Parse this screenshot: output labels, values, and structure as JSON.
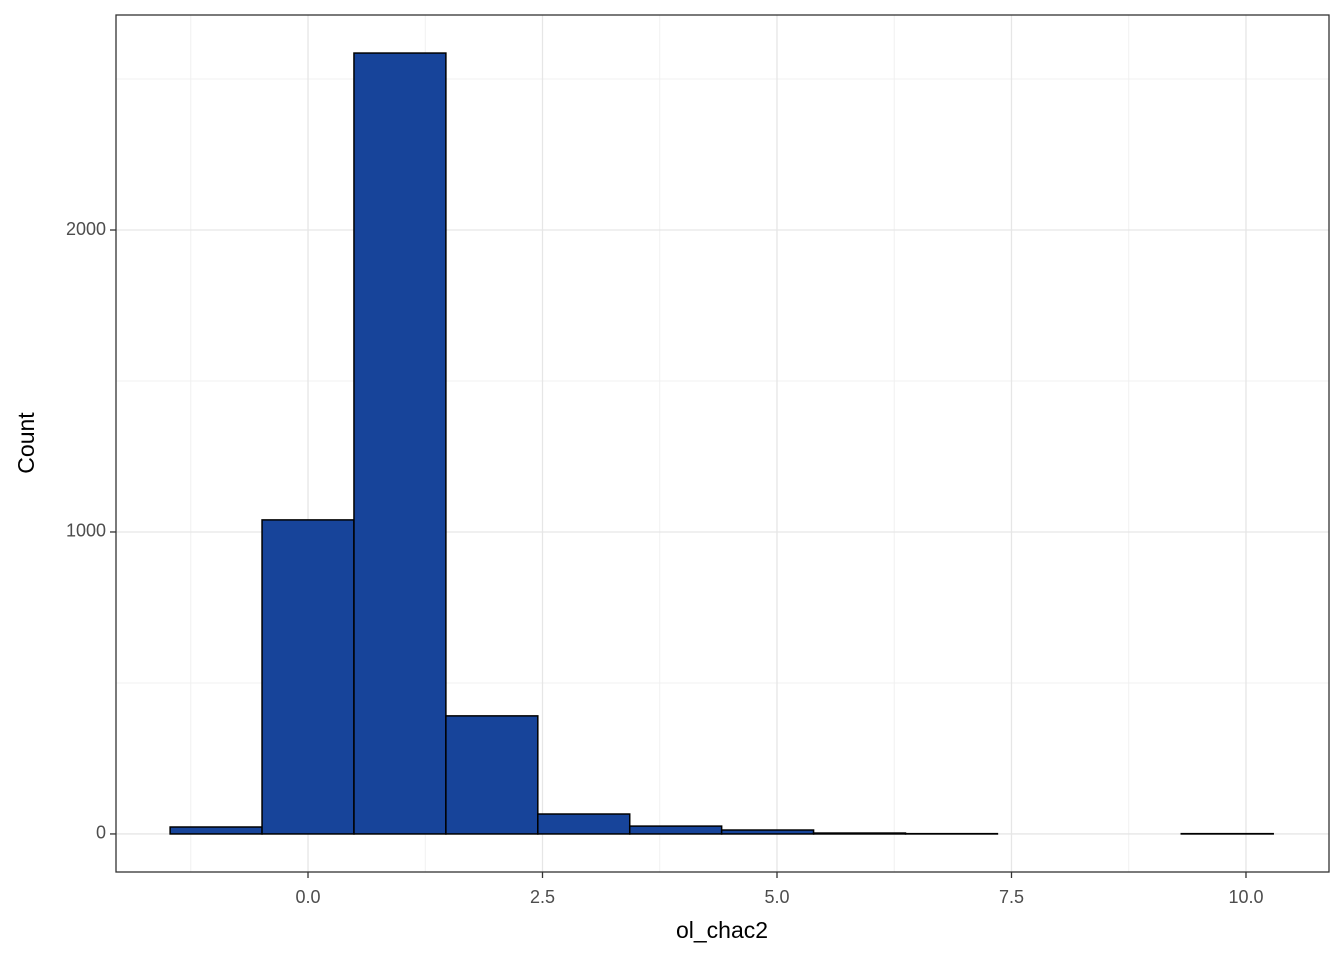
{
  "chart_data": {
    "type": "histogram",
    "x_label": "ol_chac2",
    "y_label": "Count",
    "bins": [
      -1.47,
      -0.49,
      0.49,
      1.47,
      2.45,
      3.43,
      4.41,
      5.39,
      6.37,
      7.35,
      8.33,
      9.31,
      10.29
    ],
    "values": [
      23,
      1040,
      2586,
      391,
      66,
      26,
      13,
      3,
      1,
      0,
      0,
      1
    ],
    "color": "#17449a",
    "edge_color": "#000000",
    "xlim": [
      -2.047,
      10.885
    ],
    "ylim": [
      -126,
      2712
    ],
    "xticks": [
      {
        "value": 0,
        "label": "0.0"
      },
      2.5,
      {
        "value": 5,
        "label": "5.0"
      },
      7.5,
      {
        "value": 10,
        "label": "10.0"
      }
    ],
    "yticks": [
      0,
      1000,
      2000
    ],
    "x_minor_ticks": [
      -1.25,
      1.25,
      3.75,
      6.25,
      8.75
    ],
    "y_minor_ticks": [
      500,
      1500,
      2500
    ],
    "grid": true
  }
}
